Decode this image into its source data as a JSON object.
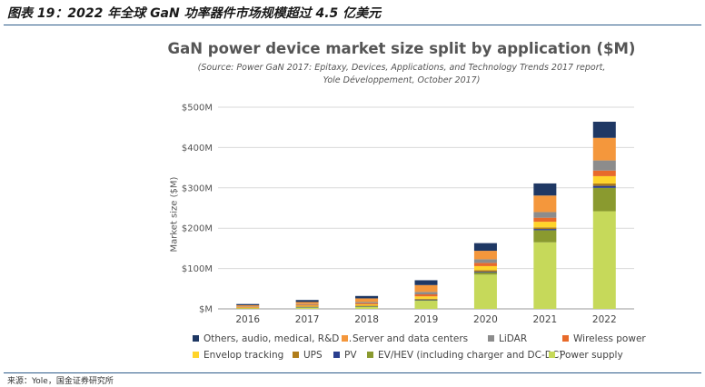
{
  "caption": "图表 19：2022 年全球 GaN 功率器件市场规模超过 4.5 亿美元",
  "source_note": "来源：Yole，国金证券研究所",
  "chart_data": {
    "type": "bar",
    "stacked": true,
    "title": "GaN power device market size split by application ($M)",
    "subtitle_lines": [
      "(Source: Power GaN 2017: Epitaxy, Devices, Applications, and Technology Trends 2017 report,",
      "Yole Développement, October 2017)"
    ],
    "ylabel": "Market size ($M)",
    "xlabel": "",
    "ylim": [
      0,
      500
    ],
    "yticks": [
      0,
      100,
      200,
      300,
      400,
      500
    ],
    "ytick_labels": [
      "$M",
      "$100M",
      "$200M",
      "$300M",
      "$400M",
      "$500M"
    ],
    "grid": true,
    "legend_position": "bottom",
    "categories": [
      "2016",
      "2017",
      "2018",
      "2019",
      "2020",
      "2021",
      "2022"
    ],
    "series": [
      {
        "name": "Power supply",
        "color": "#c6d95a",
        "values": [
          2,
          4,
          6,
          20,
          85,
          165,
          242
        ]
      },
      {
        "name": "EV/HEV (including charger and DC-DC)",
        "color": "#8a9a2f",
        "values": [
          0,
          0,
          0,
          2,
          5,
          30,
          58
        ]
      },
      {
        "name": "PV",
        "color": "#2a3f8f",
        "values": [
          0,
          1,
          1,
          1,
          2,
          3,
          5
        ]
      },
      {
        "name": "UPS",
        "color": "#b07d1a",
        "values": [
          1,
          1,
          1,
          2,
          4,
          4,
          6
        ]
      },
      {
        "name": "Envelop tracking",
        "color": "#ffd42a",
        "values": [
          1,
          2,
          3,
          6,
          10,
          14,
          18
        ]
      },
      {
        "name": "Wireless power",
        "color": "#e86a2a",
        "values": [
          1,
          2,
          3,
          5,
          8,
          10,
          14
        ]
      },
      {
        "name": "LiDAR",
        "color": "#8c8c8c",
        "values": [
          1,
          2,
          3,
          6,
          9,
          14,
          25
        ]
      },
      {
        "name": "Server and data centers",
        "color": "#f4973c",
        "values": [
          3,
          5,
          9,
          17,
          21,
          41,
          56
        ]
      },
      {
        "name": "Others, audio, medical, R&D …",
        "color": "#1f3864",
        "values": [
          3,
          5,
          6,
          12,
          19,
          30,
          40
        ]
      }
    ]
  },
  "legend_rows": [
    [
      "Others, audio, medical, R&D …",
      "Server and data centers",
      "LiDAR",
      "Wireless power"
    ],
    [
      "Envelop tracking",
      "UPS",
      "PV",
      "EV/HEV (including charger and DC-DC)",
      "Power supply"
    ]
  ]
}
